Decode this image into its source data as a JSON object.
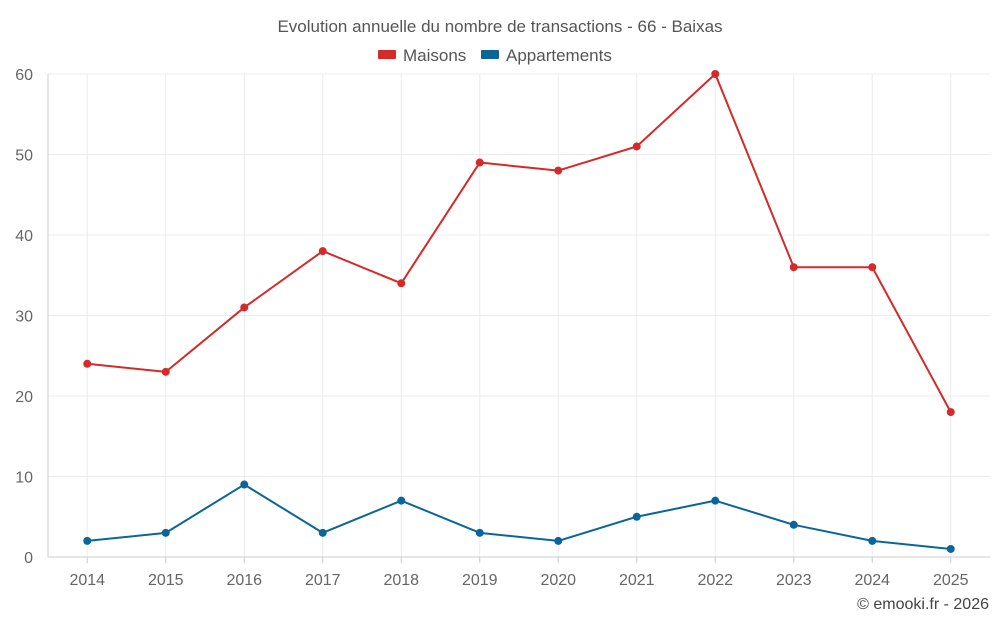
{
  "chart_data": {
    "type": "line",
    "title": "Evolution annuelle du nombre de transactions - 66 - Baixas",
    "categories": [
      "2014",
      "2015",
      "2016",
      "2017",
      "2018",
      "2019",
      "2020",
      "2021",
      "2022",
      "2023",
      "2024",
      "2025"
    ],
    "series": [
      {
        "name": "Maisons",
        "color": "#d42a2a",
        "values": [
          24,
          23,
          31,
          38,
          34,
          49,
          48,
          51,
          60,
          36,
          36,
          18
        ]
      },
      {
        "name": "Appartements",
        "color": "#0a6699",
        "values": [
          2,
          3,
          9,
          3,
          7,
          3,
          2,
          5,
          7,
          4,
          2,
          1
        ]
      }
    ],
    "yticks": [
      "0",
      "10",
      "20",
      "30",
      "40",
      "50",
      "60"
    ],
    "ylim": [
      0,
      60
    ],
    "xlabel": "",
    "ylabel": "",
    "grid": true,
    "legend": "top-center"
  },
  "credit": "© emooki.fr - 2026"
}
